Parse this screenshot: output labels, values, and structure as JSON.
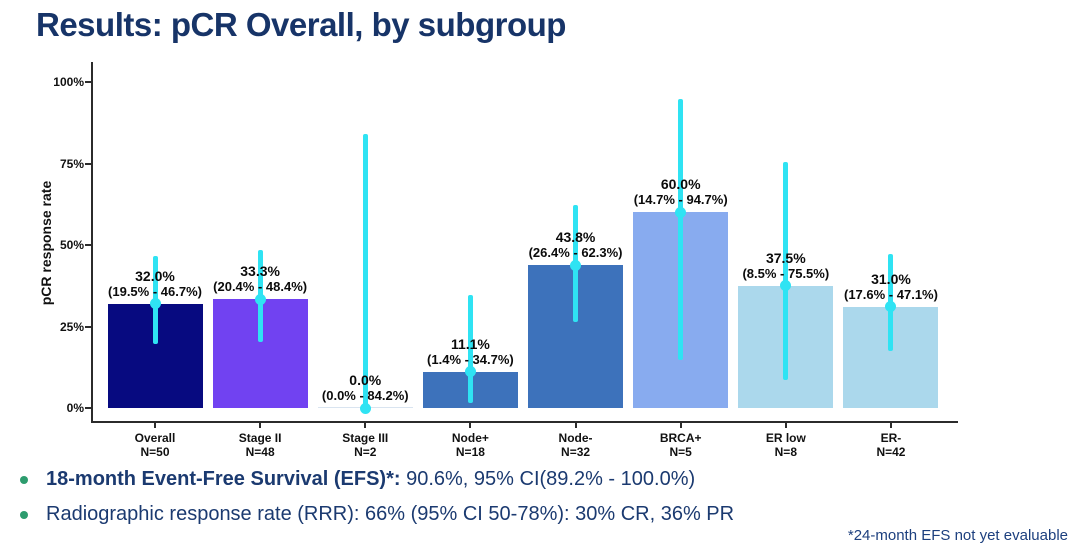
{
  "slide": {
    "title": "Results: pCR Overall, by subgroup",
    "footnote": "*24-month EFS not yet evaluable",
    "bullets": [
      {
        "bold": "18-month Event-Free Survival (EFS)*:",
        "text": " 90.6%, 95% CI(89.2% - 100.0%)"
      },
      {
        "bold": "",
        "text": "Radiographic response rate (RRR): 66% (95% CI 50-78%): 30% CR, 36% PR"
      }
    ],
    "colors": {
      "title_text": "#173468",
      "body_text": "#1b3a70",
      "footnote_text": "#1c3f7e",
      "bullet_dot": "#2d9c6e",
      "axis": "#2b2b2b"
    }
  },
  "chart_data": {
    "type": "bar",
    "title": "",
    "xlabel": "",
    "ylabel": "pCR response rate",
    "ylim": [
      0,
      100
    ],
    "yticks": [
      0,
      25,
      50,
      75,
      100
    ],
    "ytick_labels": [
      "0%",
      "25%",
      "50%",
      "75%",
      "100%"
    ],
    "grid": false,
    "legend": "none",
    "error_bar_color": "#2fe3f3",
    "groups": [
      {
        "label": "Overall",
        "n": "N=50",
        "value": 32.0,
        "ci_low": 19.5,
        "ci_high": 46.7,
        "value_label": "32.0%",
        "ci_label": "(19.5% - 46.7%)",
        "color": "#070a80"
      },
      {
        "label": "Stage II",
        "n": "N=48",
        "value": 33.3,
        "ci_low": 20.4,
        "ci_high": 48.4,
        "value_label": "33.3%",
        "ci_label": "(20.4% - 48.4%)",
        "color": "#7142f1"
      },
      {
        "label": "Stage III",
        "n": "N=2",
        "value": 0.0,
        "ci_low": 0.0,
        "ci_high": 84.2,
        "value_label": "0.0%",
        "ci_label": "(0.0% - 84.2%)",
        "color": "#d9e4f0"
      },
      {
        "label": "Node+",
        "n": "N=18",
        "value": 11.1,
        "ci_low": 1.4,
        "ci_high": 34.7,
        "value_label": "11.1%",
        "ci_label": "(1.4% - 34.7%)",
        "color": "#3d72bb"
      },
      {
        "label": "Node-",
        "n": "N=32",
        "value": 43.8,
        "ci_low": 26.4,
        "ci_high": 62.3,
        "value_label": "43.8%",
        "ci_label": "(26.4% - 62.3%)",
        "color": "#3d72bb"
      },
      {
        "label": "BRCA+",
        "n": "N=5",
        "value": 60.0,
        "ci_low": 14.7,
        "ci_high": 94.7,
        "value_label": "60.0%",
        "ci_label": "(14.7% - 94.7%)",
        "color": "#88abef"
      },
      {
        "label": "ER low",
        "n": "N=8",
        "value": 37.5,
        "ci_low": 8.5,
        "ci_high": 75.5,
        "value_label": "37.5%",
        "ci_label": "(8.5% - 75.5%)",
        "color": "#abd8ec"
      },
      {
        "label": "ER-",
        "n": "N=42",
        "value": 31.0,
        "ci_low": 17.6,
        "ci_high": 47.1,
        "value_label": "31.0%",
        "ci_label": "(17.6% - 47.1%)",
        "color": "#abd8ec"
      }
    ]
  }
}
